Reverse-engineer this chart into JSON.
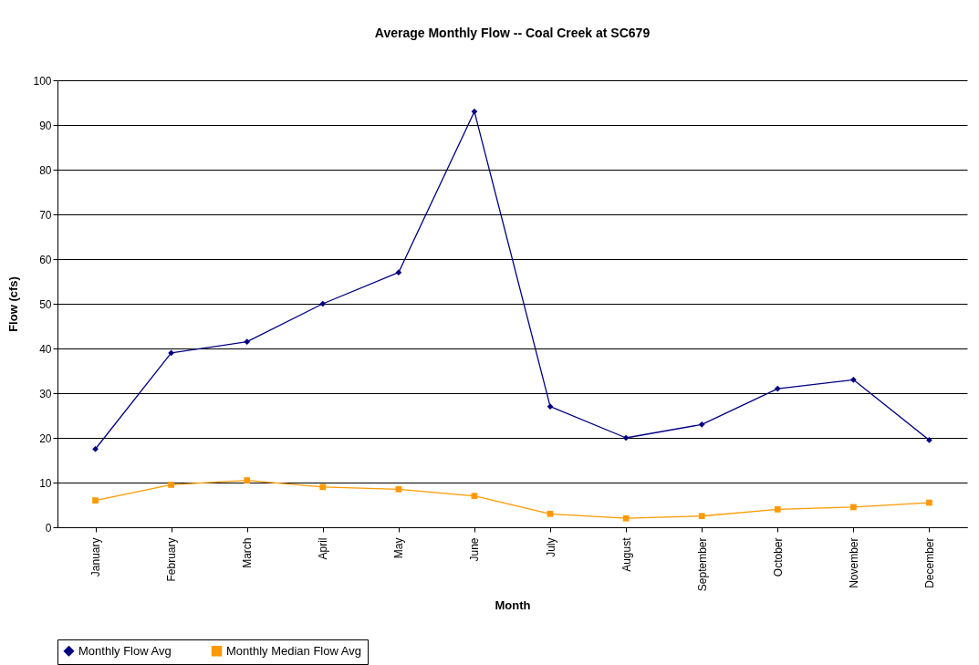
{
  "chart_data": {
    "type": "line",
    "title": "Average Monthly Flow -- Coal Creek at SC679",
    "xlabel": "Month",
    "ylabel": "Flow (cfs)",
    "categories": [
      "January",
      "February",
      "March",
      "April",
      "May",
      "June",
      "July",
      "August",
      "September",
      "October",
      "November",
      "December"
    ],
    "series": [
      {
        "name": "Monthly Flow Avg",
        "color": "#000080",
        "marker": "diamond",
        "values": [
          17.5,
          39,
          41.5,
          50,
          57,
          93,
          27,
          20,
          23,
          31,
          33,
          19.5
        ]
      },
      {
        "name": "Monthly Median Flow Avg",
        "color": "#ff9900",
        "marker": "square",
        "values": [
          6,
          9.5,
          10.5,
          9,
          8.5,
          7,
          3,
          2,
          2.5,
          4,
          4.5,
          5.5
        ]
      }
    ],
    "ylim": [
      0,
      100
    ],
    "yticks": [
      0,
      10,
      20,
      30,
      40,
      50,
      60,
      70,
      80,
      90,
      100
    ],
    "grid": "y",
    "legend": "bottom"
  }
}
